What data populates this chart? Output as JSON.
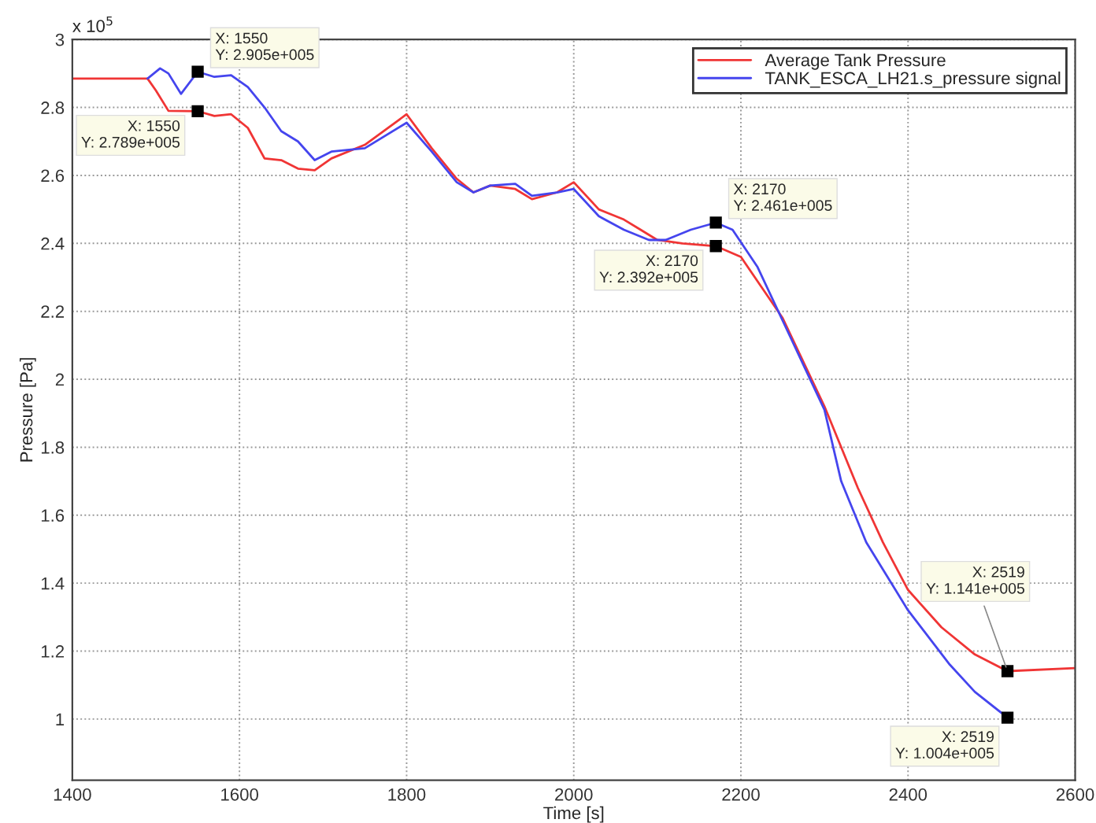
{
  "chart_data": {
    "type": "line",
    "xlabel": "Time [s]",
    "ylabel": "Pressure [Pa]",
    "xlim": [
      1400,
      2600
    ],
    "xticks": [
      1400,
      1600,
      1800,
      2000,
      2200,
      2400,
      2600
    ],
    "ylim": [
      0.82,
      3
    ],
    "yticks": [
      1,
      1.2,
      1.4,
      1.6,
      1.8,
      2,
      2.2,
      2.4,
      2.6,
      2.8,
      3
    ],
    "grid": true,
    "legend": "top right",
    "line_style": "solid",
    "marker": "none",
    "series": [
      {
        "name": "Average Tank Pressure",
        "color": "#f03535",
        "x": [
          1400,
          1490,
          1500,
          1515,
          1550,
          1570,
          1590,
          1610,
          1630,
          1650,
          1670,
          1690,
          1710,
          1750,
          1800,
          1830,
          1860,
          1880,
          1900,
          1930,
          1950,
          1980,
          2000,
          2030,
          2060,
          2080,
          2100,
          2130,
          2170,
          2200,
          2250,
          2300,
          2340,
          2370,
          2400,
          2440,
          2480,
          2519,
          2600
        ],
        "values": [
          2.885,
          2.885,
          2.85,
          2.79,
          2.789,
          2.775,
          2.78,
          2.74,
          2.65,
          2.645,
          2.62,
          2.615,
          2.65,
          2.69,
          2.78,
          2.68,
          2.59,
          2.55,
          2.57,
          2.56,
          2.53,
          2.55,
          2.58,
          2.5,
          2.47,
          2.44,
          2.41,
          2.4,
          2.392,
          2.36,
          2.18,
          1.92,
          1.68,
          1.52,
          1.38,
          1.27,
          1.19,
          1.141,
          1.15
        ]
      },
      {
        "name": "TANK_ESCA_LH21.s_pressure signal",
        "color": "#4545ee",
        "x": [
          1490,
          1505,
          1515,
          1530,
          1550,
          1570,
          1590,
          1610,
          1630,
          1650,
          1670,
          1690,
          1710,
          1750,
          1800,
          1830,
          1860,
          1880,
          1900,
          1930,
          1950,
          1980,
          2000,
          2030,
          2060,
          2090,
          2110,
          2140,
          2170,
          2190,
          2220,
          2260,
          2300,
          2320,
          2350,
          2400,
          2450,
          2480,
          2519
        ],
        "values": [
          2.885,
          2.915,
          2.9,
          2.84,
          2.905,
          2.89,
          2.895,
          2.86,
          2.8,
          2.73,
          2.7,
          2.645,
          2.67,
          2.68,
          2.755,
          2.67,
          2.58,
          2.55,
          2.57,
          2.575,
          2.54,
          2.55,
          2.56,
          2.48,
          2.44,
          2.41,
          2.41,
          2.44,
          2.461,
          2.44,
          2.33,
          2.12,
          1.91,
          1.7,
          1.52,
          1.32,
          1.16,
          1.08,
          1.004
        ]
      }
    ],
    "annotations": [
      "x 10$^{5}$",
      {
        "text": "X: 1550\nY: 2.905e+005",
        "x": 1550,
        "y": 2.905
      },
      {
        "text": "X: 1550\nY: 2.789e+005",
        "x": 1550,
        "y": 2.789
      },
      {
        "text": "X: 2170\nY: 2.461e+005",
        "x": 2170,
        "y": 2.461
      },
      {
        "text": "X: 2170\nY: 2.392e+005",
        "x": 2170,
        "y": 2.392
      },
      {
        "text": "X: 2519\nY: 1.141e+005",
        "x": 2519,
        "y": 1.141
      },
      {
        "text": "X: 2519\nY: 1.004e+005",
        "x": 2519,
        "y": 1.004
      }
    ]
  }
}
